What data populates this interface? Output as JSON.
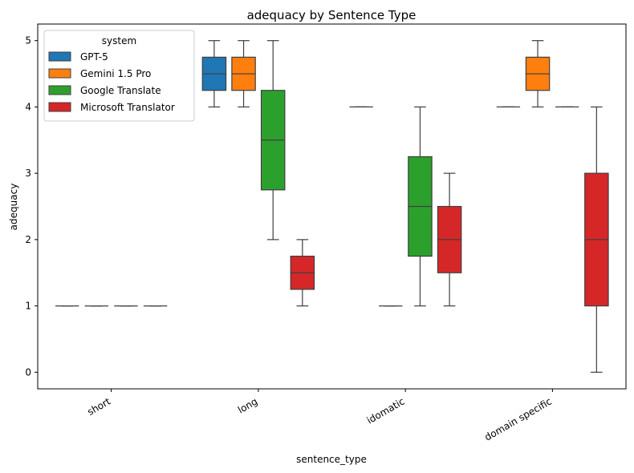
{
  "chart_data": {
    "type": "box",
    "title": "adequacy by Sentence Type",
    "xlabel": "sentence_type",
    "ylabel": "adequacy",
    "ylim": [
      -0.25,
      5.25
    ],
    "yticks": [
      0,
      1,
      2,
      3,
      4,
      5
    ],
    "grid": false,
    "legend": {
      "title": "system",
      "placement": "top-left"
    },
    "categories": [
      "short",
      "long",
      "idomatic",
      "domain specific"
    ],
    "series": [
      {
        "name": "GPT-5",
        "color": "#1f77b4",
        "boxes": [
          {
            "whislo": 1,
            "q1": 1,
            "med": 1,
            "q3": 1,
            "whishi": 1
          },
          {
            "whislo": 4,
            "q1": 4.25,
            "med": 4.5,
            "q3": 4.75,
            "whishi": 5
          },
          {
            "whislo": 4,
            "q1": 4,
            "med": 4,
            "q3": 4,
            "whishi": 4
          },
          {
            "whislo": 4,
            "q1": 4,
            "med": 4,
            "q3": 4,
            "whishi": 4
          }
        ]
      },
      {
        "name": "Gemini 1.5 Pro",
        "color": "#ff7f0e",
        "boxes": [
          {
            "whislo": 1,
            "q1": 1,
            "med": 1,
            "q3": 1,
            "whishi": 1
          },
          {
            "whislo": 4,
            "q1": 4.25,
            "med": 4.5,
            "q3": 4.75,
            "whishi": 5
          },
          {
            "whislo": 1,
            "q1": 1,
            "med": 1,
            "q3": 1,
            "whishi": 1
          },
          {
            "whislo": 4,
            "q1": 4.25,
            "med": 4.5,
            "q3": 4.75,
            "whishi": 5
          }
        ]
      },
      {
        "name": "Google Translate",
        "color": "#2ca02c",
        "boxes": [
          {
            "whislo": 1,
            "q1": 1,
            "med": 1,
            "q3": 1,
            "whishi": 1
          },
          {
            "whislo": 2,
            "q1": 2.75,
            "med": 3.5,
            "q3": 4.25,
            "whishi": 5
          },
          {
            "whislo": 1,
            "q1": 1.75,
            "med": 2.5,
            "q3": 3.25,
            "whishi": 4
          },
          {
            "whislo": 4,
            "q1": 4,
            "med": 4,
            "q3": 4,
            "whishi": 4
          }
        ]
      },
      {
        "name": "Microsoft Translator",
        "color": "#d62728",
        "boxes": [
          {
            "whislo": 1,
            "q1": 1,
            "med": 1,
            "q3": 1,
            "whishi": 1
          },
          {
            "whislo": 1,
            "q1": 1.25,
            "med": 1.5,
            "q3": 1.75,
            "whishi": 2
          },
          {
            "whislo": 1,
            "q1": 1.5,
            "med": 2,
            "q3": 2.5,
            "whishi": 3
          },
          {
            "whislo": 0,
            "q1": 1,
            "med": 2,
            "q3": 3,
            "whishi": 4
          }
        ]
      }
    ]
  }
}
